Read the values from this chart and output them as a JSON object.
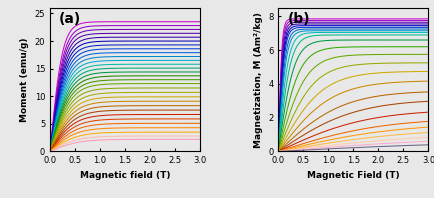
{
  "panel_a": {
    "label": "(a)",
    "ylabel": "Moment (emu/g)",
    "xlabel": "Magnetic field (T)",
    "xlim": [
      0,
      3.0
    ],
    "ylim": [
      0,
      26
    ],
    "yticks": [
      0,
      5,
      10,
      15,
      20,
      25
    ],
    "xticks": [
      0.0,
      0.5,
      1.0,
      1.5,
      2.0,
      2.5,
      3.0
    ],
    "n_curves": 30,
    "sat_values": [
      23.5,
      22.8,
      22.1,
      21.4,
      20.7,
      20.0,
      19.3,
      18.6,
      17.9,
      17.2,
      16.5,
      15.8,
      15.1,
      14.4,
      13.7,
      13.0,
      12.3,
      11.5,
      10.7,
      9.9,
      9.1,
      8.3,
      7.5,
      6.7,
      5.9,
      5.1,
      4.3,
      3.5,
      2.8,
      2.2
    ],
    "knee": [
      0.25,
      0.27,
      0.28,
      0.29,
      0.3,
      0.31,
      0.32,
      0.33,
      0.34,
      0.35,
      0.36,
      0.37,
      0.38,
      0.39,
      0.4,
      0.41,
      0.42,
      0.43,
      0.44,
      0.45,
      0.46,
      0.47,
      0.48,
      0.49,
      0.5,
      0.51,
      0.52,
      0.53,
      0.55,
      0.57
    ]
  },
  "panel_b": {
    "label": "(b)",
    "ylabel": "Magnetization, M (Am²/kg)",
    "xlabel": "Magnetic Field (T)",
    "xlim": [
      0,
      3.0
    ],
    "ylim": [
      0,
      8.5
    ],
    "yticks": [
      0,
      2,
      4,
      6,
      8
    ],
    "xticks": [
      0.0,
      0.5,
      1.0,
      1.5,
      2.0,
      2.5,
      3.0
    ],
    "n_curves": 25,
    "sat_values": [
      7.85,
      7.75,
      7.65,
      7.55,
      7.45,
      7.35,
      7.25,
      7.15,
      7.05,
      6.9,
      6.6,
      6.2,
      5.75,
      5.25,
      4.75,
      4.2,
      3.6,
      3.1,
      2.5,
      2.0,
      1.7,
      1.4,
      1.1,
      0.85,
      0.6
    ],
    "knee": [
      0.07,
      0.08,
      0.09,
      0.1,
      0.11,
      0.12,
      0.14,
      0.16,
      0.2,
      0.25,
      0.32,
      0.42,
      0.55,
      0.7,
      0.88,
      1.08,
      1.3,
      1.55,
      1.8,
      2.1,
      2.4,
      2.7,
      3.0,
      3.4,
      3.8
    ]
  },
  "colors_a": [
    "#CC00CC",
    "#9900CC",
    "#7700BB",
    "#5500AA",
    "#3300AA",
    "#0000BB",
    "#0022CC",
    "#0044DD",
    "#0066DD",
    "#0088CC",
    "#00AACC",
    "#00BBAA",
    "#00AA77",
    "#009944",
    "#228800",
    "#449900",
    "#66AA00",
    "#88AA00",
    "#AAAA00",
    "#CCAA00",
    "#CC8800",
    "#BB6600",
    "#AA4400",
    "#CC2200",
    "#DD4400",
    "#EE6600",
    "#FF8800",
    "#FFAA00",
    "#FFBBAA",
    "#FF99BB"
  ],
  "colors_b": [
    "#CC00CC",
    "#9900CC",
    "#6600BB",
    "#3300AA",
    "#0000CC",
    "#0033CC",
    "#0066CC",
    "#0099CC",
    "#00BBBB",
    "#00BB88",
    "#009944",
    "#33AA00",
    "#66AA00",
    "#99AA00",
    "#CCAA00",
    "#CC8800",
    "#BB6600",
    "#AA4400",
    "#CC2200",
    "#EE6600",
    "#FF9900",
    "#FFBB44",
    "#FFCCAA",
    "#FFAACC",
    "#666688"
  ],
  "bg_color": "#e8e8e8"
}
